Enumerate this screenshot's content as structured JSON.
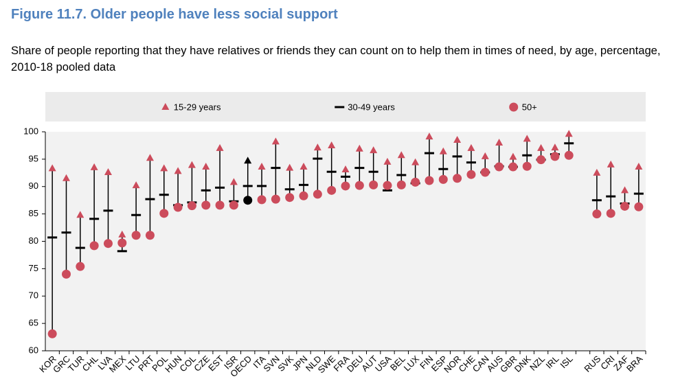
{
  "chart_data": {
    "type": "range-dot",
    "title": "Figure 11.7. Older people have less social support",
    "subtitle": "Share of people reporting that they have relatives or friends they can count on to help them in times of need, by age, percentage, 2010-18 pooled data",
    "categories": [
      "KOR",
      "GRC",
      "TUR",
      "CHL",
      "LVA",
      "MEX",
      "LTU",
      "PRT",
      "POL",
      "HUN",
      "COL",
      "CZE",
      "EST",
      "ISR",
      "OECD",
      "ITA",
      "SVN",
      "SVK",
      "JPN",
      "NLD",
      "SWE",
      "FRA",
      "DEU",
      "AUT",
      "USA",
      "BEL",
      "LUX",
      "FIN",
      "ESP",
      "NOR",
      "CHE",
      "CAN",
      "AUS",
      "GBR",
      "DNK",
      "NZL",
      "IRL",
      "ISL",
      null,
      "RUS",
      "CRI",
      "ZAF",
      "BRA"
    ],
    "series": [
      {
        "name": "15-29 years",
        "marker": "triangle",
        "color": "#cc4c5c",
        "values": [
          93.3,
          91.5,
          84.8,
          93.5,
          92.6,
          81.2,
          90.2,
          95.2,
          93.3,
          92.8,
          93.9,
          93.6,
          97.0,
          90.8,
          94.7,
          93.6,
          98.2,
          93.4,
          93.6,
          97.1,
          97.5,
          93.1,
          96.9,
          96.6,
          94.5,
          95.7,
          94.4,
          99.1,
          96.4,
          98.5,
          97.0,
          95.5,
          98.0,
          95.4,
          98.7,
          97.0,
          97.1,
          99.6,
          null,
          92.5,
          94.0,
          89.3,
          93.6
        ]
      },
      {
        "name": "30-49 years",
        "marker": "dash",
        "color": "#000000",
        "values": [
          80.7,
          81.6,
          78.8,
          84.1,
          85.6,
          78.2,
          84.8,
          87.7,
          88.5,
          86.6,
          87.1,
          89.3,
          89.8,
          87.3,
          90.1,
          90.1,
          93.4,
          89.5,
          90.3,
          95.1,
          92.7,
          91.8,
          93.4,
          92.7,
          89.3,
          92.1,
          90.6,
          96.1,
          93.2,
          95.5,
          94.4,
          92.6,
          93.7,
          93.6,
          95.7,
          94.9,
          95.9,
          97.9,
          null,
          87.5,
          88.2,
          86.9,
          88.7
        ]
      },
      {
        "name": "50+",
        "marker": "circle",
        "color": "#cc4c5c",
        "values": [
          63.1,
          74.0,
          75.4,
          79.2,
          79.6,
          79.7,
          81.1,
          81.1,
          85.1,
          86.2,
          86.5,
          86.6,
          86.6,
          86.6,
          87.5,
          87.6,
          87.7,
          88.0,
          88.3,
          88.6,
          89.3,
          90.1,
          90.2,
          90.3,
          90.2,
          90.3,
          90.8,
          91.1,
          91.3,
          91.5,
          92.2,
          92.6,
          93.6,
          93.6,
          93.7,
          94.9,
          95.5,
          95.7,
          null,
          85.0,
          85.1,
          86.4,
          86.3
        ]
      }
    ],
    "highlight": {
      "category": "OECD",
      "color": "#000000"
    },
    "ylim": [
      60,
      100
    ],
    "yticks": [
      60,
      65,
      70,
      75,
      80,
      85,
      90,
      95,
      100
    ],
    "grid": false,
    "legend": "top"
  }
}
